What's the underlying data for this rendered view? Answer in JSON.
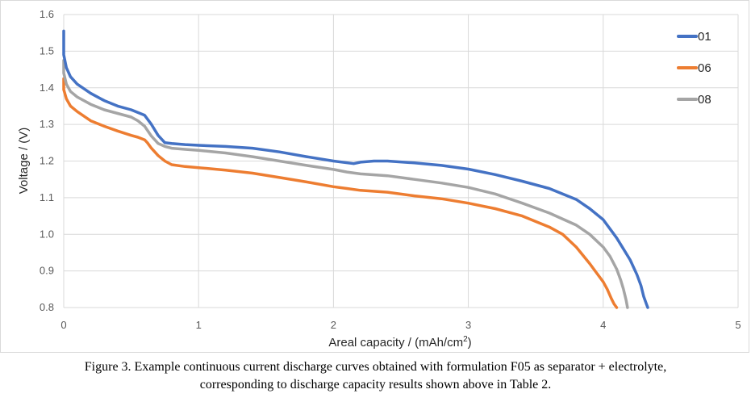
{
  "chart_data": {
    "type": "line",
    "title": "",
    "xlabel": "Areal capacity / (mAh/cm",
    "xlabel_sup": "2",
    "xlabel_end": ")",
    "ylabel": "Voltage  / (V)",
    "xlim": [
      0,
      5
    ],
    "ylim": [
      0.8,
      1.6
    ],
    "x_ticks": [
      "0",
      "1",
      "2",
      "3",
      "4",
      "5"
    ],
    "y_ticks": [
      "0.8",
      "0.9",
      "1.0",
      "1.1",
      "1.2",
      "1.3",
      "1.4",
      "1.5",
      "1.6"
    ],
    "grid": true,
    "legend_position": "top-right",
    "series": [
      {
        "name": "01",
        "color": "#4472C4",
        "x": [
          0.0,
          0.0,
          0.02,
          0.05,
          0.1,
          0.2,
          0.3,
          0.4,
          0.5,
          0.6,
          0.65,
          0.7,
          0.75,
          0.8,
          0.9,
          1.0,
          1.2,
          1.4,
          1.6,
          1.8,
          2.0,
          2.15,
          2.2,
          2.3,
          2.4,
          2.6,
          2.8,
          3.0,
          3.2,
          3.4,
          3.6,
          3.8,
          3.9,
          4.0,
          4.1,
          4.15,
          4.2,
          4.25,
          4.28,
          4.3,
          4.32,
          4.33
        ],
        "y": [
          1.555,
          1.49,
          1.455,
          1.43,
          1.41,
          1.385,
          1.365,
          1.35,
          1.34,
          1.325,
          1.3,
          1.27,
          1.25,
          1.248,
          1.245,
          1.243,
          1.24,
          1.235,
          1.225,
          1.212,
          1.2,
          1.193,
          1.197,
          1.2,
          1.2,
          1.195,
          1.188,
          1.178,
          1.163,
          1.145,
          1.125,
          1.095,
          1.07,
          1.04,
          0.99,
          0.96,
          0.93,
          0.89,
          0.86,
          0.83,
          0.81,
          0.8
        ]
      },
      {
        "name": "06",
        "color": "#ED7D31",
        "x": [
          0.0,
          0.0,
          0.02,
          0.05,
          0.1,
          0.2,
          0.3,
          0.4,
          0.5,
          0.55,
          0.6,
          0.62,
          0.65,
          0.7,
          0.75,
          0.8,
          0.9,
          1.0,
          1.2,
          1.4,
          1.6,
          1.8,
          2.0,
          2.1,
          2.2,
          2.4,
          2.6,
          2.8,
          3.0,
          3.2,
          3.4,
          3.6,
          3.7,
          3.8,
          3.9,
          3.95,
          4.0,
          4.03,
          4.06,
          4.08,
          4.1
        ],
        "y": [
          1.425,
          1.395,
          1.37,
          1.35,
          1.335,
          1.31,
          1.295,
          1.282,
          1.27,
          1.265,
          1.258,
          1.25,
          1.235,
          1.215,
          1.2,
          1.19,
          1.185,
          1.182,
          1.175,
          1.167,
          1.155,
          1.143,
          1.13,
          1.125,
          1.12,
          1.115,
          1.105,
          1.097,
          1.085,
          1.07,
          1.05,
          1.02,
          1.0,
          0.965,
          0.92,
          0.895,
          0.87,
          0.85,
          0.825,
          0.81,
          0.8
        ]
      },
      {
        "name": "08",
        "color": "#A5A5A5",
        "x": [
          0.0,
          0.0,
          0.02,
          0.05,
          0.1,
          0.2,
          0.3,
          0.4,
          0.5,
          0.55,
          0.6,
          0.65,
          0.7,
          0.75,
          0.8,
          0.9,
          1.0,
          1.2,
          1.4,
          1.6,
          1.8,
          2.0,
          2.1,
          2.2,
          2.4,
          2.6,
          2.8,
          3.0,
          3.2,
          3.4,
          3.6,
          3.8,
          3.9,
          4.0,
          4.05,
          4.1,
          4.13,
          4.15,
          4.17,
          4.18
        ],
        "y": [
          1.475,
          1.44,
          1.41,
          1.39,
          1.375,
          1.355,
          1.34,
          1.33,
          1.32,
          1.31,
          1.295,
          1.268,
          1.248,
          1.24,
          1.235,
          1.232,
          1.229,
          1.222,
          1.212,
          1.2,
          1.188,
          1.177,
          1.17,
          1.165,
          1.16,
          1.15,
          1.14,
          1.128,
          1.11,
          1.085,
          1.058,
          1.025,
          1.0,
          0.965,
          0.94,
          0.905,
          0.875,
          0.85,
          0.82,
          0.8
        ]
      }
    ]
  },
  "caption": {
    "line1": "Figure 3. Example continuous current discharge curves obtained with formulation F05 as separator + electrolyte,",
    "line2": "corresponding to discharge capacity results shown above in Table 2."
  }
}
